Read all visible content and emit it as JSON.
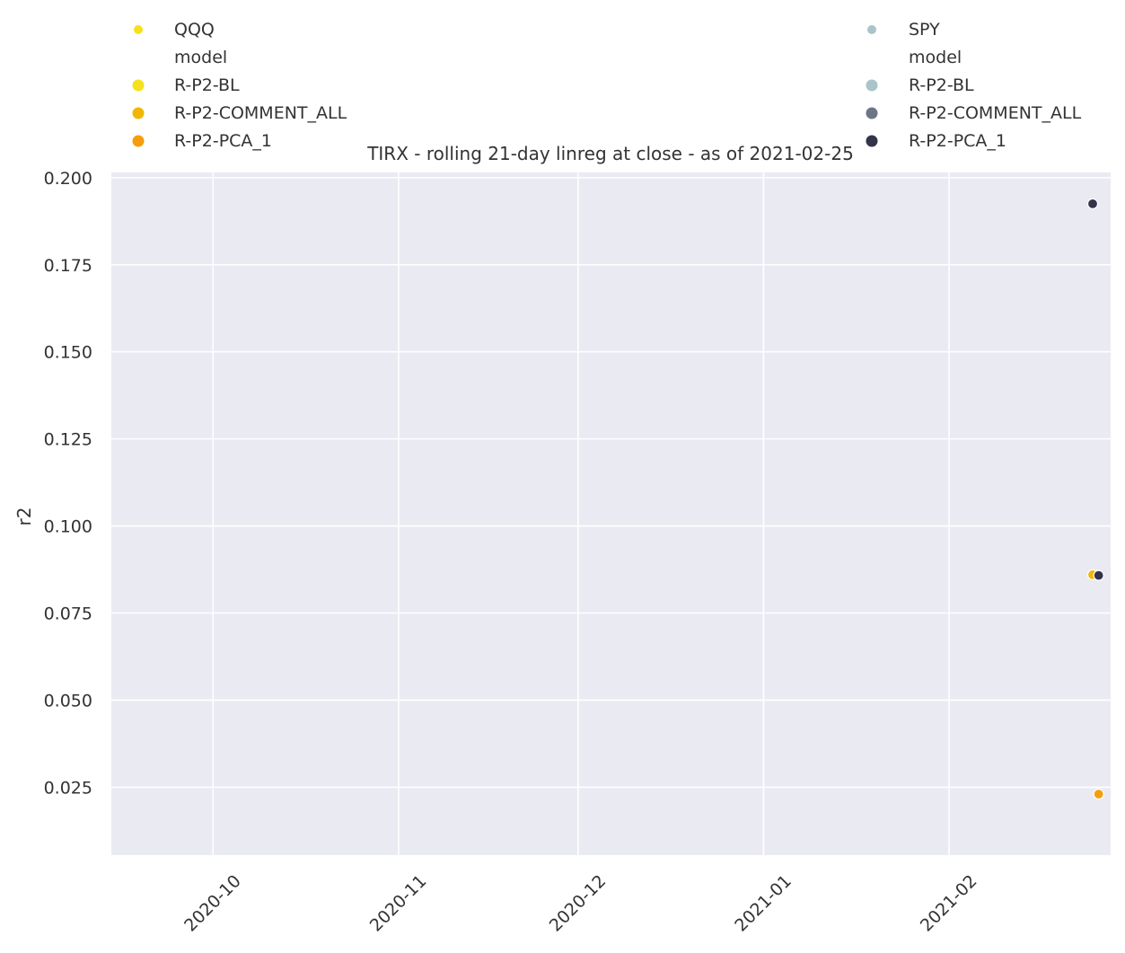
{
  "chart_data": {
    "type": "scatter",
    "title": "TIRX - rolling 21-day linreg at close - as of 2021-02-25",
    "xlabel": "",
    "ylabel": "r2",
    "x_type": "date",
    "xlim": [
      "2020-09-14",
      "2021-02-28"
    ],
    "ylim": [
      0.0055,
      0.2015
    ],
    "x_ticks": [
      "2020-10-01",
      "2020-11-01",
      "2020-12-01",
      "2021-01-01",
      "2021-02-01"
    ],
    "x_tick_labels": [
      "2020-10",
      "2020-11",
      "2020-12",
      "2021-01",
      "2021-02"
    ],
    "y_ticks": [
      0.025,
      0.05,
      0.075,
      0.1,
      0.125,
      0.15,
      0.175,
      0.2
    ],
    "y_tick_labels": [
      "0.025",
      "0.050",
      "0.075",
      "0.100",
      "0.125",
      "0.150",
      "0.175",
      "0.200"
    ],
    "grid": true,
    "background": "#eaeaf2",
    "grid_color": "#ffffff",
    "series": [
      {
        "name": "QQQ R-P2-BL",
        "color": "#f5e11e",
        "points": []
      },
      {
        "name": "QQQ R-P2-COMMENT_ALL",
        "color": "#f2b705",
        "points": [
          {
            "x": "2021-02-25",
            "y": 0.086
          }
        ]
      },
      {
        "name": "QQQ R-P2-PCA_1",
        "color": "#f59e0b",
        "points": [
          {
            "x": "2021-02-26",
            "y": 0.023
          }
        ]
      },
      {
        "name": "SPY R-P2-BL",
        "color": "#a9c5c9",
        "points": []
      },
      {
        "name": "SPY R-P2-COMMENT_ALL",
        "color": "#6e7587",
        "points": []
      },
      {
        "name": "SPY R-P2-PCA_1",
        "color": "#33334a",
        "points": [
          {
            "x": "2021-02-25",
            "y": 0.1925
          },
          {
            "x": "2021-02-26",
            "y": 0.0858
          }
        ]
      }
    ],
    "legends": [
      {
        "placement": "top-left",
        "entries": [
          {
            "label": "QQQ",
            "color": "#f5e11e",
            "kind": "group"
          },
          {
            "label": "model",
            "color": "",
            "kind": "header"
          },
          {
            "label": "R-P2-BL",
            "color": "#f5e11e",
            "kind": "item"
          },
          {
            "label": "R-P2-COMMENT_ALL",
            "color": "#f2b705",
            "kind": "item"
          },
          {
            "label": "R-P2-PCA_1",
            "color": "#f59e0b",
            "kind": "item"
          }
        ]
      },
      {
        "placement": "top-right",
        "entries": [
          {
            "label": "SPY",
            "color": "#a9c5c9",
            "kind": "group"
          },
          {
            "label": "model",
            "color": "",
            "kind": "header"
          },
          {
            "label": "R-P2-BL",
            "color": "#a9c5c9",
            "kind": "item"
          },
          {
            "label": "R-P2-COMMENT_ALL",
            "color": "#6e7587",
            "kind": "item"
          },
          {
            "label": "R-P2-PCA_1",
            "color": "#33334a",
            "kind": "item"
          }
        ]
      }
    ]
  }
}
